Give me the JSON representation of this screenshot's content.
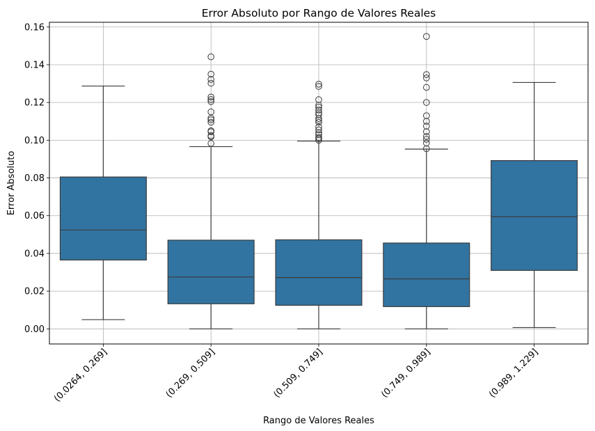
{
  "chart_data": {
    "type": "box",
    "title": "Error Absoluto por Rango de Valores Reales",
    "xlabel": "Rango de Valores Reales",
    "ylabel": "Error Absoluto",
    "ylim": [
      -0.008,
      0.1625
    ],
    "yticks": [
      "0.00",
      "0.02",
      "0.04",
      "0.06",
      "0.08",
      "0.10",
      "0.12",
      "0.14",
      "0.16"
    ],
    "grid": true,
    "box_color": "#3274a1",
    "line_color": "#3b3b3b",
    "categories": [
      "(0.0264, 0.269]",
      "(0.269, 0.509]",
      "(0.509, 0.749]",
      "(0.749, 0.989]",
      "(0.989, 1.229]"
    ],
    "boxes": [
      {
        "category": "(0.0264, 0.269]",
        "whisker_low": 0.0049,
        "q1": 0.0365,
        "median": 0.0524,
        "q3": 0.0805,
        "whisker_high": 0.1287,
        "outliers": []
      },
      {
        "category": "(0.269, 0.509]",
        "whisker_low": 0.0,
        "q1": 0.0133,
        "median": 0.0275,
        "q3": 0.047,
        "whisker_high": 0.0966,
        "outliers": [
          0.0983,
          0.1018,
          0.1024,
          0.1045,
          0.105,
          0.1095,
          0.1108,
          0.1117,
          0.115,
          0.1205,
          0.1216,
          0.1229,
          0.1302,
          0.1322,
          0.135,
          0.1442
        ]
      },
      {
        "category": "(0.509, 0.749]",
        "whisker_low": 0.0,
        "q1": 0.0125,
        "median": 0.0272,
        "q3": 0.0472,
        "whisker_high": 0.0995,
        "outliers": [
          0.1,
          0.1008,
          0.1015,
          0.103,
          0.104,
          0.1055,
          0.107,
          0.1095,
          0.1105,
          0.1115,
          0.1135,
          0.1145,
          0.116,
          0.1175,
          0.1185,
          0.1215,
          0.1285,
          0.1297
        ]
      },
      {
        "category": "(0.749, 0.989]",
        "whisker_low": 0.0,
        "q1": 0.0118,
        "median": 0.0265,
        "q3": 0.0455,
        "whisker_high": 0.0953,
        "outliers": [
          0.0955,
          0.0985,
          0.1005,
          0.102,
          0.1045,
          0.1075,
          0.11,
          0.113,
          0.12,
          0.128,
          0.133,
          0.1348,
          0.155
        ]
      },
      {
        "category": "(0.989, 1.229]",
        "whisker_low": 0.0007,
        "q1": 0.031,
        "median": 0.0595,
        "q3": 0.0892,
        "whisker_high": 0.1306,
        "outliers": []
      }
    ]
  }
}
